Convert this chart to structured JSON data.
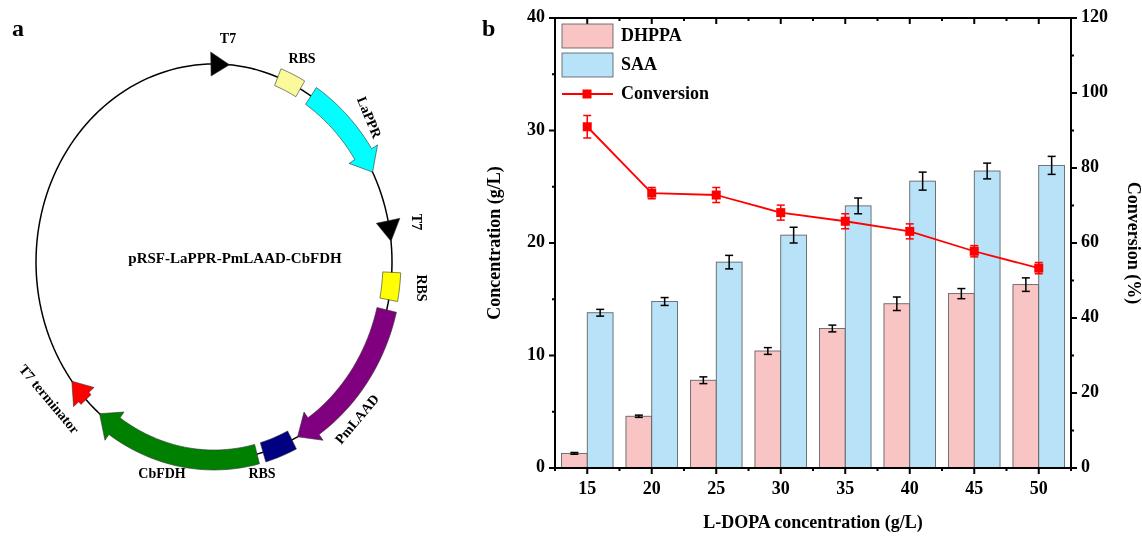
{
  "chart_data": [
    {
      "type": "other",
      "title": "a",
      "annotations": [
        "T7",
        "RBS",
        "LaPPR",
        "T7",
        "pRSF-LaPPR-PmLAAD-CbFDH",
        "RBS",
        "PmLAAD",
        "RBS",
        "CbFDH",
        "T7 terminator"
      ]
    },
    {
      "type": "bar",
      "title": "b",
      "xlabel": "L-DOPA concentration (g/L)",
      "ylabel": "Concentration (g/L)",
      "y2label": "Conversion (%)",
      "categories": [
        "15",
        "20",
        "25",
        "30",
        "35",
        "40",
        "45",
        "50"
      ],
      "series": [
        {
          "name": "DHPPA",
          "color": "#f8c4c4",
          "values": [
            1.3,
            4.6,
            7.8,
            10.4,
            12.4,
            14.6,
            15.5,
            16.3
          ],
          "errors": [
            0.08,
            0.1,
            0.3,
            0.3,
            0.3,
            0.6,
            0.45,
            0.6
          ]
        },
        {
          "name": "SAA",
          "color": "#b8e2f8",
          "values": [
            13.8,
            14.8,
            18.3,
            20.7,
            23.3,
            25.5,
            26.4,
            26.9
          ],
          "errors": [
            0.3,
            0.35,
            0.6,
            0.7,
            0.7,
            0.8,
            0.7,
            0.8
          ]
        },
        {
          "name": "Conversion",
          "color": "#ff0000",
          "type": "line",
          "axis": "y2",
          "values": [
            91.0,
            73.3,
            72.8,
            68.1,
            65.8,
            63.1,
            57.8,
            53.3
          ],
          "errors": [
            3,
            1.5,
            2,
            2,
            2,
            2,
            1.5,
            1.5
          ]
        }
      ],
      "ylim": [
        0,
        40
      ],
      "yticks": [
        0,
        10,
        20,
        30,
        40
      ],
      "y2lim": [
        0,
        120
      ],
      "y2ticks": [
        0,
        20,
        40,
        60,
        80,
        100,
        120
      ],
      "legend": "top left",
      "marker": "square",
      "line_style": "solid"
    }
  ]
}
